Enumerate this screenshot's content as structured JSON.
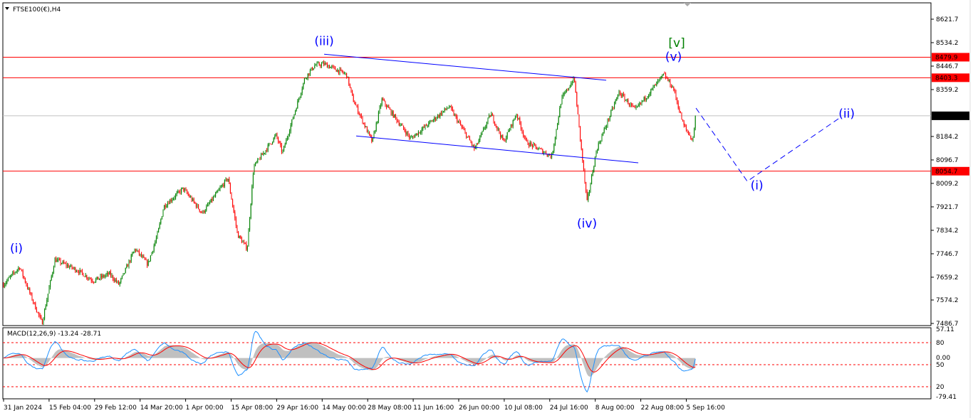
{
  "header": {
    "symbol_label": "FTSE100(€),H4",
    "indicator_label": "MACD(12,26,9) -13.24 -28.71"
  },
  "colors": {
    "up": "#008000",
    "down": "#ff0000",
    "level_line": "#ff0000",
    "current_line": "#c0c0c0",
    "wave_blue": "#0000ff",
    "wave_green": "#008000",
    "macd_hist": "#c0c0c0",
    "macd_signal": "#ff0000",
    "macd_line": "#1e90ff"
  },
  "chart_data": {
    "type": "candlestick",
    "symbol": "FTSE100(€)",
    "timeframe": "H4",
    "ylim": [
      7486.7,
      8621.7
    ],
    "y_ticks": [
      8621.7,
      8534.2,
      8446.7,
      8359.2,
      8184.2,
      8096.7,
      8009.2,
      7921.7,
      7834.2,
      7746.7,
      7659.2,
      7574.2,
      7486.7
    ],
    "x_ticks": [
      "31 Jan 2024",
      "15 Feb 04:00",
      "29 Feb 12:00",
      "14 Mar 20:00",
      "1 Apr 00:00",
      "15 Apr 08:00",
      "29 Apr 16:00",
      "14 May 00:00",
      "28 May 08:00",
      "11 Jun 16:00",
      "26 Jun 00:00",
      "10 Jul 08:00",
      "24 Jul 16:00",
      "8 Aug 00:00",
      "22 Aug 08:00",
      "5 Sep 16:00"
    ],
    "close_path": [
      [
        "2024-01-31",
        7632
      ],
      [
        "2024-02-05",
        7698
      ],
      [
        "2024-02-08",
        7605
      ],
      [
        "2024-02-12",
        7487
      ],
      [
        "2024-02-16",
        7725
      ],
      [
        "2024-02-23",
        7685
      ],
      [
        "2024-02-28",
        7646
      ],
      [
        "2024-03-04",
        7672
      ],
      [
        "2024-03-07",
        7632
      ],
      [
        "2024-03-12",
        7765
      ],
      [
        "2024-03-16",
        7707
      ],
      [
        "2024-03-19",
        7818
      ],
      [
        "2024-03-21",
        7924
      ],
      [
        "2024-03-27",
        7990
      ],
      [
        "2024-04-02",
        7898
      ],
      [
        "2024-04-10",
        8030
      ],
      [
        "2024-04-13",
        7818
      ],
      [
        "2024-04-16",
        7765
      ],
      [
        "2024-04-18",
        8070
      ],
      [
        "2024-04-25",
        8189
      ],
      [
        "2024-04-27",
        8123
      ],
      [
        "2024-05-04",
        8402
      ],
      [
        "2024-05-07",
        8449
      ],
      [
        "2024-05-10",
        8455
      ],
      [
        "2024-05-17",
        8415
      ],
      [
        "2024-05-19",
        8322
      ],
      [
        "2024-05-25",
        8163
      ],
      [
        "2024-05-28",
        8322
      ],
      [
        "2024-06-06",
        8176
      ],
      [
        "2024-06-18",
        8296
      ],
      [
        "2024-06-26",
        8136
      ],
      [
        "2024-07-01",
        8269
      ],
      [
        "2024-07-05",
        8163
      ],
      [
        "2024-07-09",
        8269
      ],
      [
        "2024-07-12",
        8163
      ],
      [
        "2024-07-20",
        8110
      ],
      [
        "2024-07-23",
        8322
      ],
      [
        "2024-07-27",
        8402
      ],
      [
        "2024-07-29",
        8163
      ],
      [
        "2024-07-31",
        7937
      ],
      [
        "2024-08-03",
        8136
      ],
      [
        "2024-08-10",
        8349
      ],
      [
        "2024-08-15",
        8282
      ],
      [
        "2024-08-24",
        8415
      ],
      [
        "2024-08-27",
        8362
      ],
      [
        "2024-08-30",
        8229
      ],
      [
        "2024-09-02",
        8168
      ],
      [
        "2024-09-03",
        8282
      ]
    ],
    "levels": [
      {
        "price": 8479.9,
        "label": "8479.9",
        "color": "#ff0000"
      },
      {
        "price": 8403.3,
        "label": "8403.3",
        "color": "#ff0000"
      },
      {
        "price": 8054.7,
        "label": "8054.7",
        "color": "#ff0000"
      }
    ],
    "current_price": {
      "price": 8261.3,
      "label": "8261.3"
    },
    "wave_labels": [
      {
        "text": "(i)",
        "date": "2024-02-04",
        "price": 7752,
        "color": "#0000ff"
      },
      {
        "text": "(iii)",
        "date": "2024-05-10",
        "price": 8525,
        "color": "#0000ff"
      },
      {
        "text": "(iv)",
        "date": "2024-07-31",
        "price": 7845,
        "color": "#0000ff"
      },
      {
        "text": "[v]",
        "date": "2024-08-28",
        "price": 8518,
        "color": "#008000"
      },
      {
        "text": "(v)",
        "date": "2024-08-27",
        "price": 8466,
        "color": "#0000ff"
      },
      {
        "text": "(i)",
        "date": "2024-09-22",
        "price": 7987,
        "color": "#0000ff"
      },
      {
        "text": "(ii)",
        "date": "2024-10-20",
        "price": 8255,
        "color": "#0000ff"
      }
    ],
    "trendlines": [
      {
        "from": [
          "2024-05-10",
          8491
        ],
        "to": [
          "2024-08-06",
          8394
        ],
        "style": "solid"
      },
      {
        "from": [
          "2024-05-20",
          8186
        ],
        "to": [
          "2024-08-16",
          8086
        ],
        "style": "solid"
      }
    ],
    "projection": [
      [
        "2024-09-03",
        8290
      ],
      [
        "2024-09-19",
        8017
      ],
      [
        "2024-10-18",
        8255
      ]
    ],
    "macd": {
      "params": "12,26,9",
      "value": -13.24,
      "signal": -28.71,
      "ylim": [
        -79.41,
        57.11
      ],
      "axis_labels": [
        "57.11",
        "80",
        "0.00",
        "50",
        "20",
        "-79.41"
      ],
      "levels": [
        80,
        50,
        20
      ]
    }
  }
}
